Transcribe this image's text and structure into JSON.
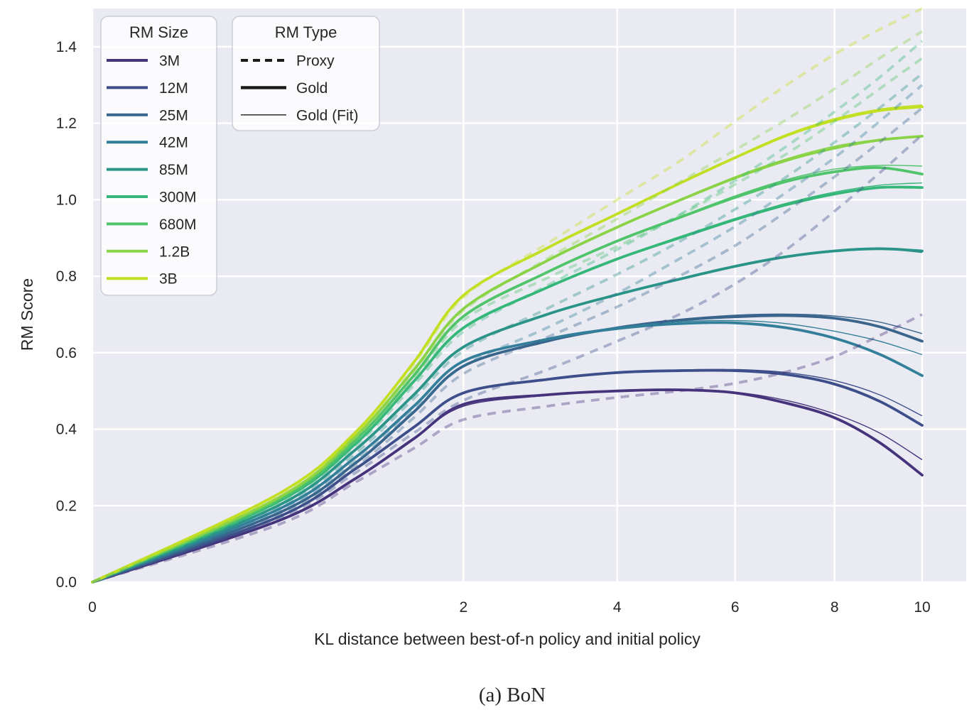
{
  "caption": "(a) BoN",
  "chart_data": {
    "type": "line",
    "title": "",
    "x_axis": {
      "label": "KL distance between best-of-n policy and initial policy",
      "scale": "sqrt",
      "ticks": [
        "0",
        "2",
        "4",
        "6",
        "8",
        "10"
      ],
      "tick_values": [
        0,
        2,
        4,
        6,
        8,
        10
      ],
      "range": [
        0,
        11.1
      ]
    },
    "y_axis": {
      "label": "RM Score",
      "ticks": [
        "0.0",
        "0.2",
        "0.4",
        "0.6",
        "0.8",
        "1.0",
        "1.2",
        "1.4"
      ],
      "tick_values": [
        0.0,
        0.2,
        0.4,
        0.6,
        0.8,
        1.0,
        1.2,
        1.4
      ],
      "range": [
        0,
        1.5
      ]
    },
    "grid": true,
    "plot_background": "#eaeaf2",
    "grid_color": "#ffffff",
    "text_color": "#262626",
    "legend_handle_color": "#1a1a1a",
    "legends": {
      "size": {
        "title": "RM Size",
        "entries": [
          "3M",
          "12M",
          "25M",
          "42M",
          "85M",
          "300M",
          "680M",
          "1.2B",
          "3B"
        ]
      },
      "type": {
        "title": "RM Type",
        "entries": [
          {
            "label": "Proxy",
            "style": "dashed"
          },
          {
            "label": "Gold",
            "style": "solid-thick"
          },
          {
            "label": "Gold (Fit)",
            "style": "solid-thin"
          }
        ]
      }
    },
    "kl": [
      0,
      0.5,
      1,
      1.5,
      2,
      3,
      4,
      5,
      6,
      7,
      8,
      9,
      10
    ],
    "series": [
      {
        "name": "3M",
        "color": "#45337c",
        "gold": [
          0,
          0.16,
          0.27,
          0.375,
          0.465,
          0.49,
          0.5,
          0.503,
          0.495,
          0.468,
          0.43,
          0.365,
          0.28
        ],
        "gold_fit": [
          0,
          0.16,
          0.27,
          0.375,
          0.46,
          0.488,
          0.5,
          0.504,
          0.497,
          0.475,
          0.44,
          0.39,
          0.32
        ],
        "proxy": [
          0,
          0.15,
          0.26,
          0.35,
          0.425,
          0.46,
          0.483,
          0.5,
          0.52,
          0.55,
          0.59,
          0.645,
          0.7
        ]
      },
      {
        "name": "12M",
        "color": "#3d4e8a",
        "gold": [
          0,
          0.17,
          0.295,
          0.405,
          0.495,
          0.53,
          0.548,
          0.553,
          0.553,
          0.543,
          0.518,
          0.473,
          0.41
        ],
        "gold_fit": [
          0,
          0.17,
          0.295,
          0.405,
          0.495,
          0.53,
          0.549,
          0.555,
          0.556,
          0.548,
          0.527,
          0.49,
          0.435
        ],
        "proxy": [
          0,
          0.165,
          0.285,
          0.39,
          0.475,
          0.555,
          0.63,
          0.7,
          0.78,
          0.87,
          0.97,
          1.07,
          1.17
        ]
      },
      {
        "name": "25M",
        "color": "#39648c",
        "gold": [
          0,
          0.18,
          0.31,
          0.445,
          0.565,
          0.63,
          0.665,
          0.685,
          0.694,
          0.697,
          0.69,
          0.668,
          0.63
        ],
        "gold_fit": [
          0,
          0.18,
          0.31,
          0.445,
          0.565,
          0.63,
          0.666,
          0.687,
          0.698,
          0.701,
          0.696,
          0.68,
          0.65
        ],
        "proxy": [
          0,
          0.175,
          0.3,
          0.43,
          0.545,
          0.64,
          0.72,
          0.8,
          0.88,
          0.97,
          1.06,
          1.15,
          1.24
        ]
      },
      {
        "name": "42M",
        "color": "#337f99",
        "gold": [
          0,
          0.19,
          0.325,
          0.46,
          0.578,
          0.635,
          0.663,
          0.676,
          0.678,
          0.665,
          0.638,
          0.596,
          0.54
        ],
        "gold_fit": [
          0,
          0.19,
          0.325,
          0.46,
          0.578,
          0.637,
          0.666,
          0.681,
          0.684,
          0.676,
          0.656,
          0.63,
          0.595
        ],
        "proxy": [
          0,
          0.185,
          0.315,
          0.45,
          0.565,
          0.665,
          0.755,
          0.845,
          0.93,
          1.02,
          1.11,
          1.205,
          1.3
        ]
      },
      {
        "name": "85M",
        "color": "#2a9488",
        "gold": [
          0,
          0.2,
          0.345,
          0.49,
          0.615,
          0.7,
          0.752,
          0.792,
          0.826,
          0.851,
          0.866,
          0.872,
          0.866
        ],
        "gold_fit": [
          0,
          0.2,
          0.345,
          0.49,
          0.615,
          0.7,
          0.753,
          0.794,
          0.828,
          0.853,
          0.868,
          0.872,
          0.862
        ],
        "proxy": [
          0,
          0.195,
          0.335,
          0.48,
          0.605,
          0.715,
          0.805,
          0.89,
          0.975,
          1.06,
          1.15,
          1.24,
          1.33
        ]
      },
      {
        "name": "300M",
        "color": "#35b779",
        "gold": [
          0,
          0.21,
          0.36,
          0.525,
          0.665,
          0.77,
          0.845,
          0.9,
          0.948,
          0.987,
          1.015,
          1.032,
          1.032
        ],
        "gold_fit": [
          0,
          0.21,
          0.36,
          0.525,
          0.665,
          0.77,
          0.846,
          0.903,
          0.951,
          0.991,
          1.02,
          1.038,
          1.044
        ],
        "proxy": [
          0,
          0.205,
          0.355,
          0.515,
          0.655,
          0.775,
          0.87,
          0.96,
          1.05,
          1.14,
          1.23,
          1.32,
          1.415
        ]
      },
      {
        "name": "680M",
        "color": "#4fc46a",
        "gold": [
          0,
          0.215,
          0.37,
          0.54,
          0.695,
          0.81,
          0.892,
          0.953,
          1.006,
          1.048,
          1.073,
          1.084,
          1.067
        ],
        "gold_fit": [
          0,
          0.215,
          0.37,
          0.54,
          0.695,
          0.81,
          0.893,
          0.955,
          1.01,
          1.053,
          1.08,
          1.09,
          1.088
        ],
        "proxy": [
          0,
          0.21,
          0.365,
          0.53,
          0.685,
          0.795,
          0.878,
          0.958,
          1.04,
          1.12,
          1.205,
          1.29,
          1.37
        ]
      },
      {
        "name": "1.2B",
        "color": "#8ad347",
        "gold": [
          0,
          0.22,
          0.38,
          0.555,
          0.715,
          0.84,
          0.928,
          0.998,
          1.057,
          1.103,
          1.135,
          1.156,
          1.166
        ],
        "gold_fit": [
          0,
          0.22,
          0.38,
          0.555,
          0.715,
          0.84,
          0.929,
          1.0,
          1.06,
          1.107,
          1.14,
          1.158,
          1.168
        ],
        "proxy": [
          0,
          0.22,
          0.375,
          0.55,
          0.71,
          0.845,
          0.95,
          1.045,
          1.13,
          1.21,
          1.29,
          1.37,
          1.44
        ]
      },
      {
        "name": "3B",
        "color": "#c2df23",
        "gold": [
          0,
          0.23,
          0.39,
          0.575,
          0.75,
          0.873,
          0.963,
          1.042,
          1.11,
          1.168,
          1.208,
          1.233,
          1.243
        ],
        "gold_fit": [
          0,
          0.23,
          0.39,
          0.575,
          0.75,
          0.873,
          0.964,
          1.044,
          1.112,
          1.171,
          1.212,
          1.237,
          1.248
        ],
        "proxy": [
          0,
          0.225,
          0.385,
          0.57,
          0.745,
          0.885,
          1.0,
          1.1,
          1.205,
          1.3,
          1.38,
          1.445,
          1.5
        ]
      }
    ]
  }
}
